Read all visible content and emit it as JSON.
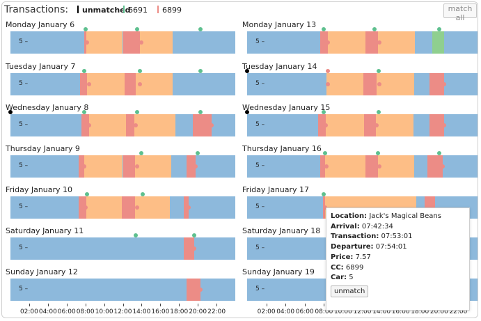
{
  "header": {
    "title": "Transactions:",
    "match_all_label": "match all"
  },
  "legend": [
    {
      "label": "unmatched",
      "color": "#000000",
      "bold": true
    },
    {
      "label": "6691",
      "color": "#5ec08f",
      "bold": false
    },
    {
      "label": "6899",
      "color": "#ec8c86",
      "bold": false
    }
  ],
  "colors": {
    "track": "#8db9dc",
    "purchase": "#fdbe86",
    "cc_6691": "#5ec08f",
    "cc_6899": "#ec8c86",
    "unmatched": "#000000",
    "highlight_6691": "#8fcf8f"
  },
  "car_label": "5 –",
  "axis": {
    "min_hours": 0,
    "max_hours": 24,
    "ticks": [
      "02:00",
      "04:00",
      "06:00",
      "08:00",
      "10:00",
      "12:00",
      "14:00",
      "16:00",
      "18:00",
      "20:00",
      "22:00"
    ]
  },
  "days": [
    {
      "label": "Monday January 6",
      "segments": [
        {
          "s": 7.9,
          "e": 8.1,
          "t": "6899"
        },
        {
          "s": 8.1,
          "e": 12.0,
          "t": "purchase"
        },
        {
          "s": 12.0,
          "e": 13.8,
          "t": "6899"
        },
        {
          "s": 13.8,
          "e": 17.3,
          "t": "purchase"
        }
      ],
      "dots": [
        {
          "h": 8.0,
          "t": "6691",
          "row": "top"
        },
        {
          "h": 13.5,
          "t": "6691",
          "row": "top"
        },
        {
          "h": 20.3,
          "t": "6691",
          "row": "top"
        },
        {
          "h": 8.2,
          "t": "6899",
          "row": "mid"
        },
        {
          "h": 14.0,
          "t": "6899",
          "row": "mid"
        }
      ]
    },
    {
      "label": "Tuesday January 7",
      "segments": [
        {
          "s": 7.4,
          "e": 8.2,
          "t": "6899"
        },
        {
          "s": 8.2,
          "e": 12.2,
          "t": "purchase"
        },
        {
          "s": 12.2,
          "e": 13.4,
          "t": "6899"
        },
        {
          "s": 13.4,
          "e": 17.3,
          "t": "purchase"
        }
      ],
      "dots": [
        {
          "h": 7.9,
          "t": "6691",
          "row": "top"
        },
        {
          "h": 13.8,
          "t": "6691",
          "row": "top"
        },
        {
          "h": 20.3,
          "t": "6691",
          "row": "top"
        },
        {
          "h": 8.4,
          "t": "6899",
          "row": "mid"
        },
        {
          "h": 13.8,
          "t": "6899",
          "row": "mid"
        }
      ]
    },
    {
      "label": "Wednesday January 8",
      "segments": [
        {
          "s": 7.6,
          "e": 8.4,
          "t": "6899"
        },
        {
          "s": 8.4,
          "e": 12.3,
          "t": "purchase"
        },
        {
          "s": 12.3,
          "e": 13.2,
          "t": "6899"
        },
        {
          "s": 13.2,
          "e": 17.6,
          "t": "purchase"
        },
        {
          "s": 19.5,
          "e": 21.5,
          "t": "6899"
        }
      ],
      "dots": [
        {
          "h": 0.0,
          "t": "unmatched",
          "row": "top"
        },
        {
          "h": 7.9,
          "t": "6691",
          "row": "top"
        },
        {
          "h": 13.5,
          "t": "6691",
          "row": "top"
        },
        {
          "h": 20.3,
          "t": "6691",
          "row": "top"
        },
        {
          "h": 8.4,
          "t": "6899",
          "row": "mid"
        },
        {
          "h": 13.4,
          "t": "6899",
          "row": "mid"
        },
        {
          "h": 21.5,
          "t": "6899",
          "row": "mid"
        }
      ]
    },
    {
      "label": "Thursday January 9",
      "segments": [
        {
          "s": 7.3,
          "e": 7.9,
          "t": "6899"
        },
        {
          "s": 7.9,
          "e": 12.0,
          "t": "purchase"
        },
        {
          "s": 12.0,
          "e": 13.3,
          "t": "6899"
        },
        {
          "s": 13.3,
          "e": 17.2,
          "t": "purchase"
        },
        {
          "s": 18.8,
          "e": 19.8,
          "t": "6899"
        }
      ],
      "dots": [
        {
          "h": 14.0,
          "t": "6691",
          "row": "top"
        },
        {
          "h": 20.0,
          "t": "6691",
          "row": "top"
        },
        {
          "h": 7.9,
          "t": "6899",
          "row": "mid"
        },
        {
          "h": 13.5,
          "t": "6899",
          "row": "mid"
        },
        {
          "h": 19.8,
          "t": "6899",
          "row": "mid"
        }
      ]
    },
    {
      "label": "Friday January 10",
      "segments": [
        {
          "s": 7.3,
          "e": 8.1,
          "t": "6899"
        },
        {
          "s": 8.1,
          "e": 11.9,
          "t": "purchase"
        },
        {
          "s": 11.9,
          "e": 13.3,
          "t": "6899"
        },
        {
          "s": 13.3,
          "e": 17.0,
          "t": "purchase"
        },
        {
          "s": 18.5,
          "e": 19.0,
          "t": "6899"
        }
      ],
      "dots": [
        {
          "h": 8.2,
          "t": "6691",
          "row": "top"
        },
        {
          "h": 14.1,
          "t": "6691",
          "row": "top"
        },
        {
          "h": 8.0,
          "t": "6899",
          "row": "mid"
        },
        {
          "h": 13.5,
          "t": "6899",
          "row": "mid"
        },
        {
          "h": 19.0,
          "t": "6899",
          "row": "mid"
        }
      ]
    },
    {
      "label": "Saturday January 11",
      "segments": [
        {
          "s": 18.5,
          "e": 19.6,
          "t": "6899"
        }
      ],
      "dots": [
        {
          "h": 13.4,
          "t": "6691",
          "row": "top"
        },
        {
          "h": 19.6,
          "t": "6691",
          "row": "top"
        },
        {
          "h": 19.6,
          "t": "6899",
          "row": "mid"
        }
      ]
    },
    {
      "label": "Sunday January 12",
      "segments": [
        {
          "s": 18.8,
          "e": 20.3,
          "t": "6899"
        }
      ],
      "dots": [
        {
          "h": 20.3,
          "t": "6899",
          "row": "mid"
        }
      ]
    },
    {
      "label": "Monday January 13",
      "segments": [
        {
          "s": 7.6,
          "e": 8.4,
          "t": "6899"
        },
        {
          "s": 8.4,
          "e": 12.3,
          "t": "purchase"
        },
        {
          "s": 12.3,
          "e": 13.6,
          "t": "6899"
        },
        {
          "s": 13.6,
          "e": 17.5,
          "t": "purchase"
        },
        {
          "s": 19.3,
          "e": 20.5,
          "t": "highlight_6691"
        }
      ],
      "dots": [
        {
          "h": 8.0,
          "t": "6691",
          "row": "top"
        },
        {
          "h": 13.3,
          "t": "6691",
          "row": "top"
        },
        {
          "h": 20.0,
          "t": "6691",
          "row": "top"
        },
        {
          "h": 8.4,
          "t": "6899",
          "row": "mid"
        },
        {
          "h": 13.8,
          "t": "6899",
          "row": "mid"
        }
      ]
    },
    {
      "label": "Tuesday January 14",
      "segments": [
        {
          "s": 8.3,
          "e": 12.1,
          "t": "purchase"
        },
        {
          "s": 12.1,
          "e": 13.5,
          "t": "6899"
        },
        {
          "s": 13.5,
          "e": 17.4,
          "t": "purchase"
        },
        {
          "s": 19.0,
          "e": 20.5,
          "t": "6899"
        }
      ],
      "dots": [
        {
          "h": 0.0,
          "t": "unmatched",
          "row": "top"
        },
        {
          "h": 8.4,
          "t": "6899",
          "row": "top"
        },
        {
          "h": 13.7,
          "t": "6691",
          "row": "top"
        },
        {
          "h": 8.4,
          "t": "6899",
          "row": "mid"
        },
        {
          "h": 13.8,
          "t": "6899",
          "row": "mid"
        },
        {
          "h": 20.5,
          "t": "6899",
          "row": "mid"
        }
      ]
    },
    {
      "label": "Wednesday January 15",
      "segments": [
        {
          "s": 7.4,
          "e": 8.2,
          "t": "6899"
        },
        {
          "s": 8.2,
          "e": 12.2,
          "t": "purchase"
        },
        {
          "s": 12.2,
          "e": 13.4,
          "t": "6899"
        },
        {
          "s": 13.4,
          "e": 17.3,
          "t": "purchase"
        },
        {
          "s": 19.0,
          "e": 20.5,
          "t": "6899"
        }
      ],
      "dots": [
        {
          "h": 0.0,
          "t": "unmatched",
          "row": "top"
        },
        {
          "h": 8.0,
          "t": "6691",
          "row": "top"
        },
        {
          "h": 13.7,
          "t": "6691",
          "row": "top"
        },
        {
          "h": 8.2,
          "t": "6899",
          "row": "mid"
        },
        {
          "h": 13.5,
          "t": "6899",
          "row": "mid"
        },
        {
          "h": 20.5,
          "t": "6899",
          "row": "mid"
        }
      ]
    },
    {
      "label": "Thursday January 16",
      "segments": [
        {
          "s": 7.6,
          "e": 8.1,
          "t": "6899"
        },
        {
          "s": 8.1,
          "e": 12.3,
          "t": "purchase"
        },
        {
          "s": 12.3,
          "e": 13.6,
          "t": "6899"
        },
        {
          "s": 13.6,
          "e": 17.4,
          "t": "purchase"
        },
        {
          "s": 18.8,
          "e": 20.4,
          "t": "6899"
        }
      ],
      "dots": [
        {
          "h": 8.1,
          "t": "6691",
          "row": "top"
        },
        {
          "h": 13.6,
          "t": "6691",
          "row": "top"
        },
        {
          "h": 20.0,
          "t": "6691",
          "row": "top"
        },
        {
          "h": 8.3,
          "t": "6899",
          "row": "mid"
        },
        {
          "h": 13.8,
          "t": "6899",
          "row": "mid"
        },
        {
          "h": 20.4,
          "t": "6899",
          "row": "mid"
        }
      ]
    },
    {
      "label": "Friday January 17",
      "segments": [
        {
          "s": 7.9,
          "e": 8.1,
          "t": "6899"
        },
        {
          "s": 8.1,
          "e": 17.6,
          "t": "purchase"
        },
        {
          "s": 18.5,
          "e": 19.6,
          "t": "6899"
        }
      ],
      "dots": [
        {
          "h": 8.0,
          "t": "6691",
          "row": "top"
        },
        {
          "h": 8.1,
          "t": "6899",
          "row": "mid"
        }
      ]
    },
    {
      "label": "Saturday January 18",
      "segments": [],
      "dots": []
    },
    {
      "label": "Sunday January 19",
      "segments": [],
      "dots": []
    }
  ],
  "tooltip": {
    "rows": [
      {
        "label": "Location:",
        "value": "Jack's Magical Beans"
      },
      {
        "label": "Arrival:",
        "value": "07:42:34"
      },
      {
        "label": "Transaction:",
        "value": "07:53:01"
      },
      {
        "label": "Departure:",
        "value": "07:54:01"
      },
      {
        "label": "Price:",
        "value": "7.57"
      },
      {
        "label": "CC:",
        "value": "6899"
      },
      {
        "label": "Car:",
        "value": "5"
      }
    ],
    "unmatch_label": "unmatch"
  }
}
